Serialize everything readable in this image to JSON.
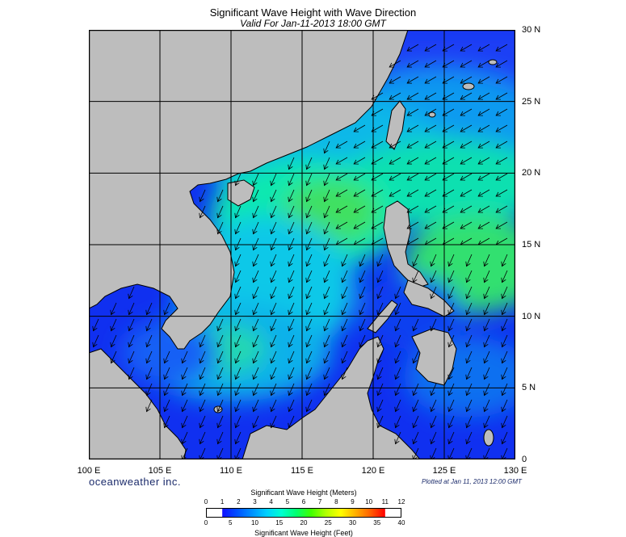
{
  "header": {
    "title": "Significant Wave Height with Wave Direction",
    "subtitle": "Valid For Jan-11-2013 18:00 GMT"
  },
  "map": {
    "region": "South China Sea",
    "lon_range": [
      100,
      130
    ],
    "lat_range": [
      0,
      30
    ],
    "grid_step_deg": 5,
    "lat_labels": [
      "30 N",
      "25 N",
      "20 N",
      "15 N",
      "10 N",
      "5 N",
      "0"
    ],
    "lon_labels": [
      "100 E",
      "105 E",
      "110 E",
      "115 E",
      "120 E",
      "125 E",
      "130 E"
    ],
    "land_color": "#bdbdbd",
    "coast_color": "#000000",
    "vector_direction": "from northeast toward southwest",
    "arrow-icon": "thin black arrow-icon"
  },
  "footer": {
    "brand": "oceanweather inc.",
    "plotted": "Plotted at Jan 11, 2013 12:00 GMT"
  },
  "colorbar": {
    "title_top": "Significant Wave Height (Meters)",
    "title_bottom": "Significant Wave Height (Feet)",
    "meters_ticks": [
      "0",
      "1",
      "2",
      "3",
      "4",
      "5",
      "6",
      "7",
      "8",
      "9",
      "10",
      "11",
      "12"
    ],
    "feet_ticks": [
      "0",
      "5",
      "10",
      "15",
      "20",
      "25",
      "30",
      "35",
      "40"
    ],
    "colors": [
      "#1010ff",
      "#0050ff",
      "#0090ff",
      "#00d0ff",
      "#00ffd0",
      "#00ff70",
      "#40ff00",
      "#b0ff00",
      "#ffff00",
      "#ffb000",
      "#ff6000",
      "#ff0000"
    ]
  }
}
